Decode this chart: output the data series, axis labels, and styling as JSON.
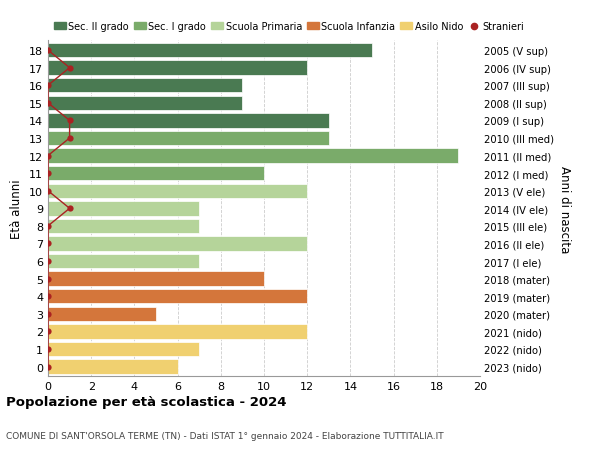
{
  "ages": [
    18,
    17,
    16,
    15,
    14,
    13,
    12,
    11,
    10,
    9,
    8,
    7,
    6,
    5,
    4,
    3,
    2,
    1,
    0
  ],
  "right_labels": [
    "2005 (V sup)",
    "2006 (IV sup)",
    "2007 (III sup)",
    "2008 (II sup)",
    "2009 (I sup)",
    "2010 (III med)",
    "2011 (II med)",
    "2012 (I med)",
    "2013 (V ele)",
    "2014 (IV ele)",
    "2015 (III ele)",
    "2016 (II ele)",
    "2017 (I ele)",
    "2018 (mater)",
    "2019 (mater)",
    "2020 (mater)",
    "2021 (nido)",
    "2022 (nido)",
    "2023 (nido)"
  ],
  "bar_values": [
    15,
    12,
    9,
    9,
    13,
    13,
    19,
    10,
    12,
    7,
    7,
    12,
    7,
    10,
    12,
    5,
    12,
    7,
    6
  ],
  "bar_colors": [
    "#4a7a52",
    "#4a7a52",
    "#4a7a52",
    "#4a7a52",
    "#4a7a52",
    "#7aab6a",
    "#7aab6a",
    "#7aab6a",
    "#b5d49a",
    "#b5d49a",
    "#b5d49a",
    "#b5d49a",
    "#b5d49a",
    "#d4763b",
    "#d4763b",
    "#d4763b",
    "#f0d070",
    "#f0d070",
    "#f0d070"
  ],
  "stranieri_values": [
    0,
    1,
    0,
    0,
    1,
    1,
    0,
    0,
    0,
    1,
    0,
    0,
    0,
    0,
    0,
    0,
    0,
    0,
    0
  ],
  "stranieri_color": "#aa2222",
  "legend_entries": [
    {
      "label": "Sec. II grado",
      "color": "#4a7a52"
    },
    {
      "label": "Sec. I grado",
      "color": "#7aab6a"
    },
    {
      "label": "Scuola Primaria",
      "color": "#b5d49a"
    },
    {
      "label": "Scuola Infanzia",
      "color": "#d4763b"
    },
    {
      "label": "Asilo Nido",
      "color": "#f0d070"
    },
    {
      "label": "Stranieri",
      "color": "#aa2222"
    }
  ],
  "ylabel_left": "Età alunni",
  "ylabel_right": "Anni di nascita",
  "title": "Popolazione per età scolastica - 2024",
  "subtitle": "COMUNE DI SANT'ORSOLA TERME (TN) - Dati ISTAT 1° gennaio 2024 - Elaborazione TUTTITALIA.IT",
  "xlim": [
    0,
    20
  ],
  "xticks": [
    0,
    2,
    4,
    6,
    8,
    10,
    12,
    14,
    16,
    18,
    20
  ],
  "background_color": "#ffffff",
  "grid_color": "#cccccc",
  "bar_height": 0.82,
  "ylim": [
    -0.55,
    18.55
  ]
}
